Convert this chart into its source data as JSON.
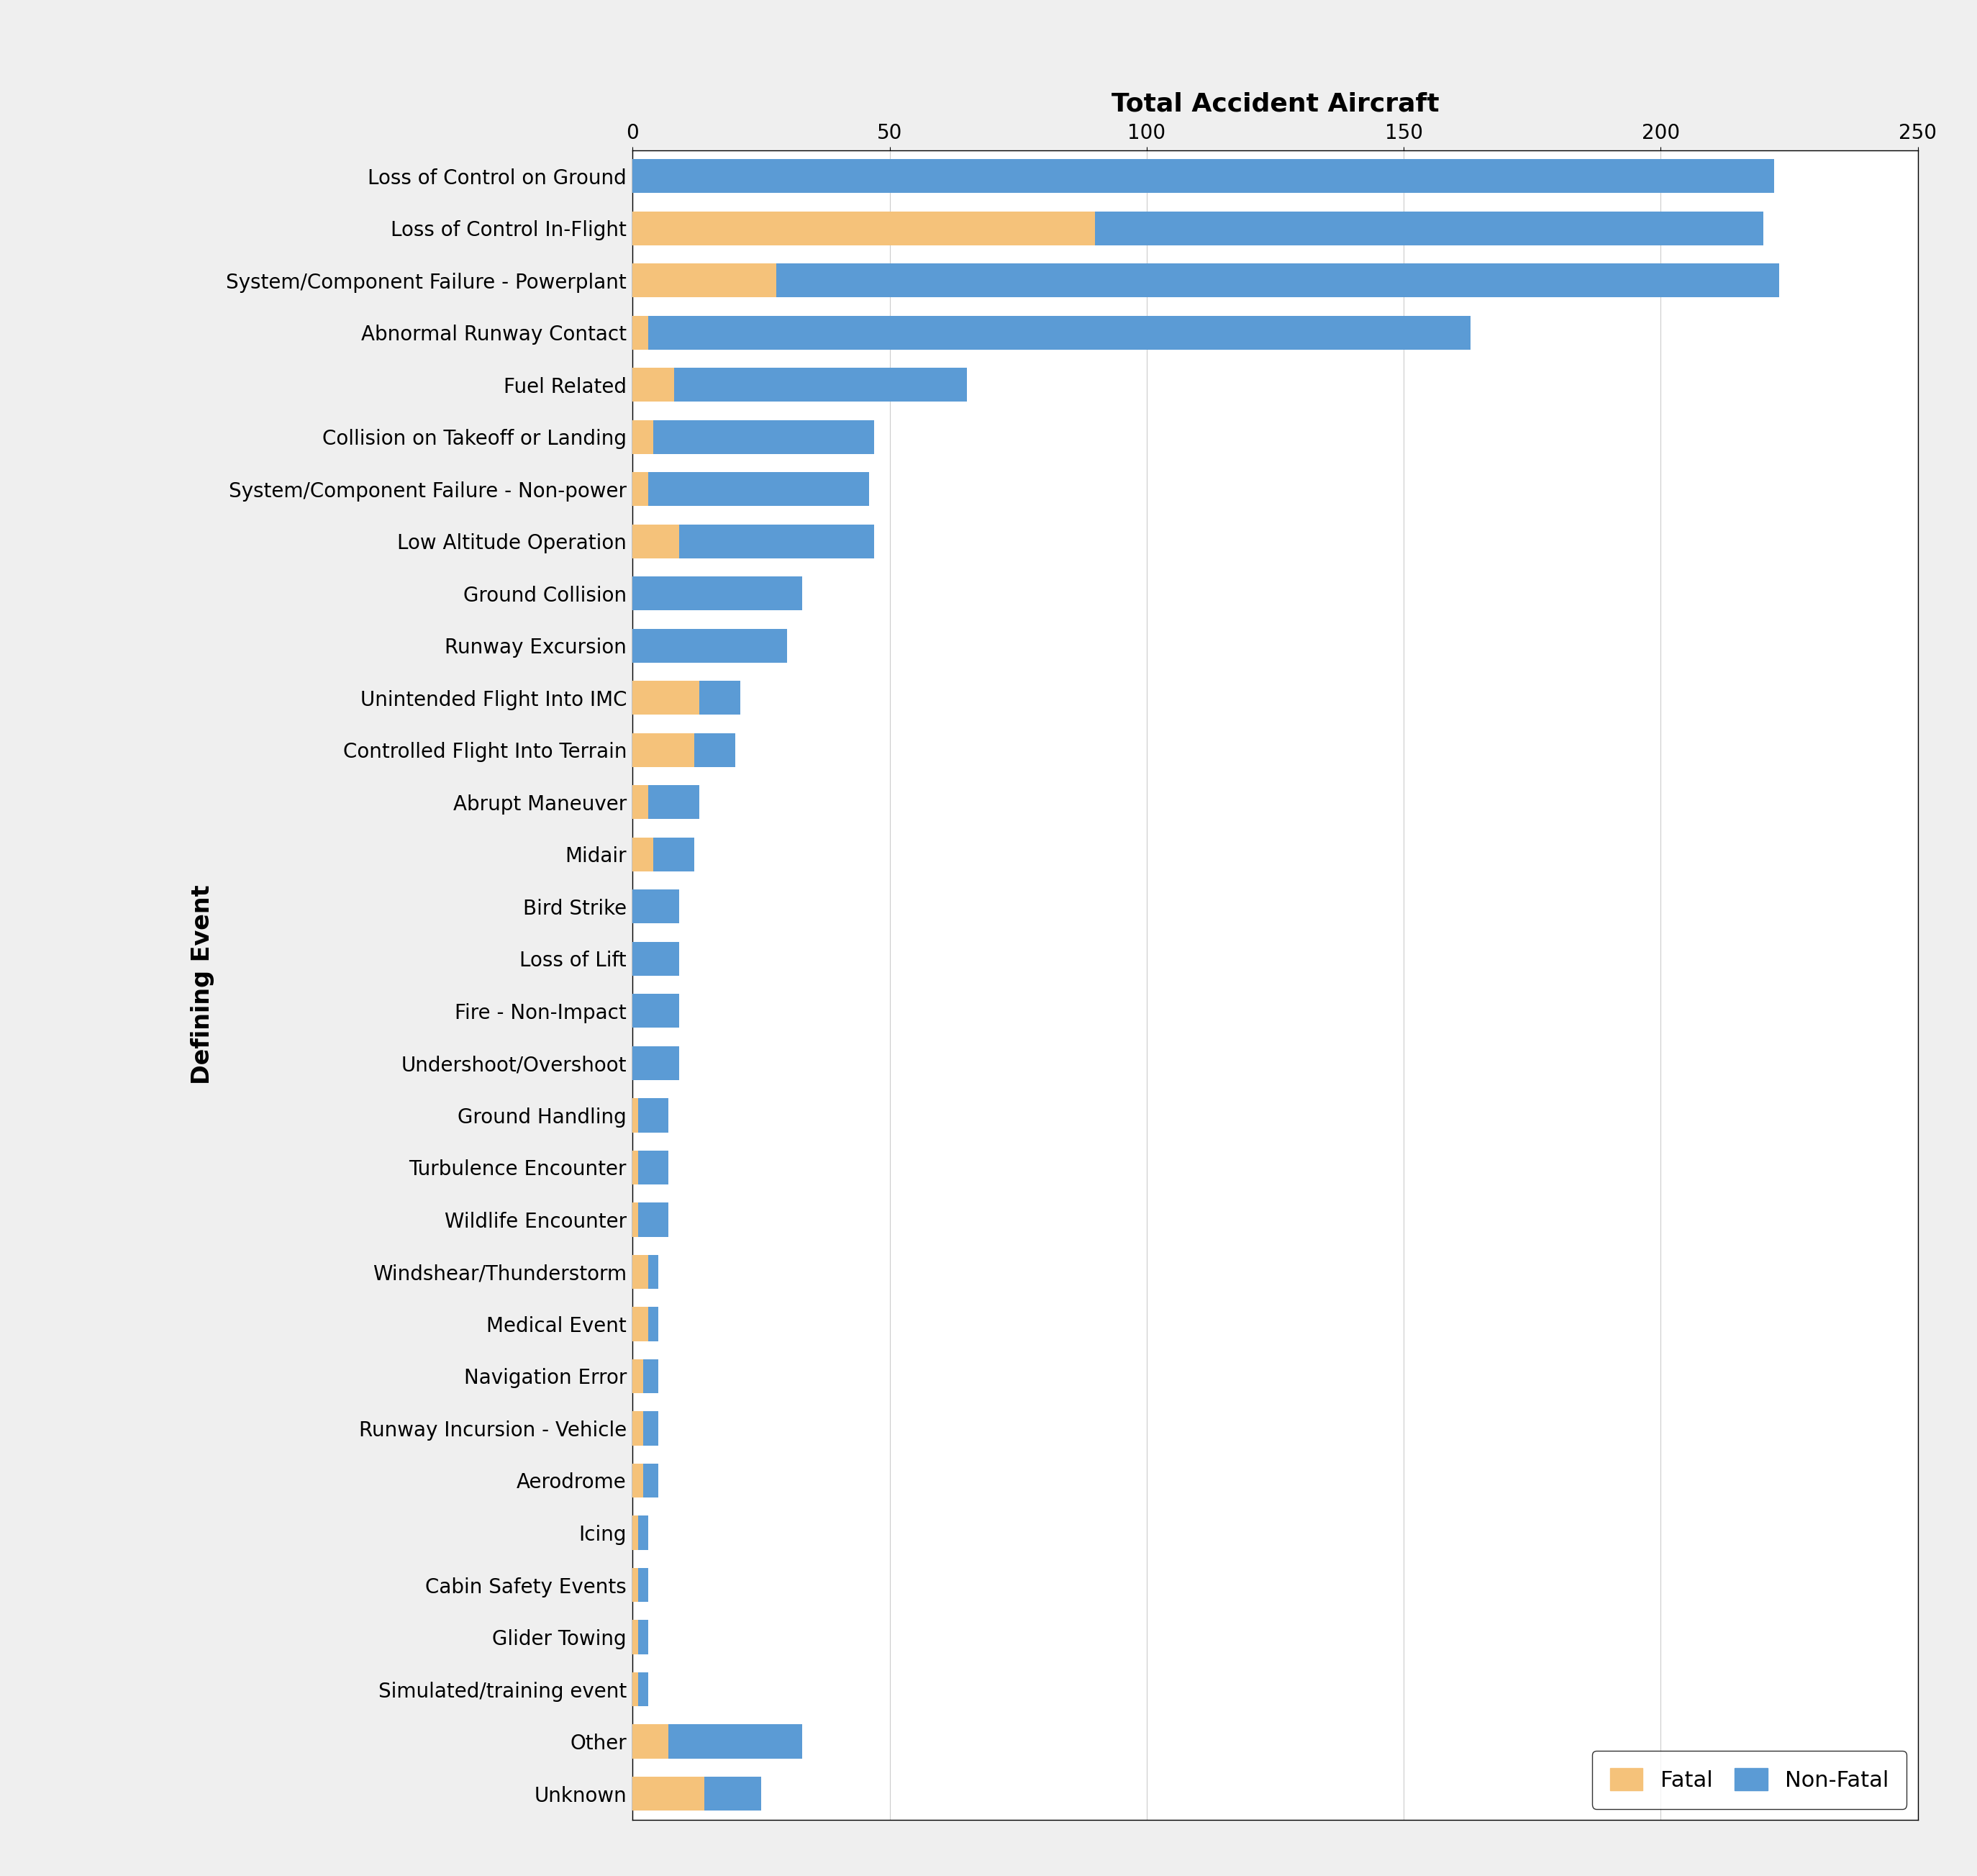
{
  "title": "Total Accident Aircraft",
  "ylabel": "Defining Event",
  "categories": [
    "Loss of Control on Ground",
    "Loss of Control In-Flight",
    "System/Component Failure - Powerplant",
    "Abnormal Runway Contact",
    "Fuel Related",
    "Collision on Takeoff or Landing",
    "System/Component Failure - Non-power",
    "Low Altitude Operation",
    "Ground Collision",
    "Runway Excursion",
    "Unintended Flight Into IMC",
    "Controlled Flight Into Terrain",
    "Abrupt Maneuver",
    "Midair",
    "Bird Strike",
    "Loss of Lift",
    "Fire - Non-Impact",
    "Undershoot/Overshoot",
    "Ground Handling",
    "Turbulence Encounter",
    "Wildlife Encounter",
    "Windshear/Thunderstorm",
    "Medical Event",
    "Navigation Error",
    "Runway Incursion - Vehicle",
    "Aerodrome",
    "Icing",
    "Cabin Safety Events",
    "Glider Towing",
    "Simulated/training event",
    "Other",
    "Unknown"
  ],
  "fatal_values": [
    0,
    90,
    28,
    3,
    8,
    4,
    3,
    9,
    0,
    0,
    13,
    12,
    3,
    4,
    0,
    0,
    0,
    0,
    1,
    1,
    1,
    3,
    3,
    2,
    2,
    2,
    1,
    1,
    1,
    1,
    7,
    14
  ],
  "nonfatal_values": [
    222,
    130,
    195,
    160,
    57,
    43,
    43,
    38,
    33,
    30,
    8,
    8,
    10,
    8,
    9,
    9,
    9,
    9,
    6,
    6,
    6,
    2,
    2,
    3,
    3,
    3,
    2,
    2,
    2,
    2,
    26,
    11
  ],
  "fatal_color": "#F5C27A",
  "nonfatal_color": "#5B9BD5",
  "background_color": "#EFEFEF",
  "plot_bg_color": "#FFFFFF",
  "xlim": [
    0,
    250
  ],
  "xticks": [
    0,
    50,
    100,
    150,
    200,
    250
  ],
  "title_fontsize": 26,
  "label_fontsize": 24,
  "tick_fontsize": 20,
  "legend_fontsize": 22,
  "bar_height": 0.65
}
